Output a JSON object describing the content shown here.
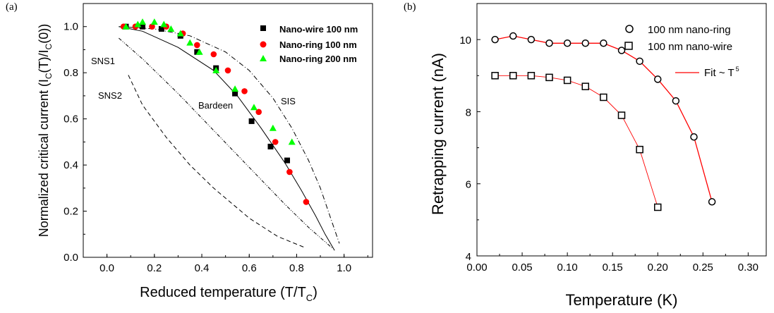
{
  "chart_data": [
    {
      "panel_label": "(a)",
      "type": "scatter",
      "xlabel_main": "Reduced temperature (T/T",
      "xlabel_sub": "C",
      "xlabel_end": ")",
      "ylabel_parts": [
        "Normalized critical current (I",
        "C",
        "(T)/I",
        "C",
        "(0))"
      ],
      "xlim": [
        -0.1,
        1.12
      ],
      "ylim": [
        0.0,
        1.1
      ],
      "xticks": [
        "0.0",
        "0.2",
        "0.4",
        "0.6",
        "0.8",
        "1.0"
      ],
      "yticks": [
        "0.0",
        "0.2",
        "0.4",
        "0.6",
        "0.8",
        "1.0"
      ],
      "series": [
        {
          "name": "Nano-wire 100 nm",
          "marker": "square",
          "color": "#000000",
          "x": [
            0.08,
            0.15,
            0.23,
            0.31,
            0.38,
            0.46,
            0.54,
            0.61,
            0.69,
            0.76
          ],
          "y": [
            1.0,
            1.0,
            0.99,
            0.96,
            0.89,
            0.82,
            0.71,
            0.59,
            0.48,
            0.42
          ]
        },
        {
          "name": "Nano-ring 100 nm",
          "marker": "circle",
          "color": "#ff0000",
          "x": [
            0.07,
            0.12,
            0.19,
            0.25,
            0.32,
            0.38,
            0.45,
            0.51,
            0.58,
            0.64,
            0.71,
            0.77,
            0.84
          ],
          "y": [
            1.0,
            1.0,
            1.0,
            1.0,
            0.97,
            0.92,
            0.88,
            0.81,
            0.72,
            0.63,
            0.5,
            0.37,
            0.24
          ]
        },
        {
          "name": "Nano-ring 200 nm",
          "marker": "triangle",
          "color": "#00ff00",
          "x": [
            0.08,
            0.13,
            0.15,
            0.2,
            0.24,
            0.27,
            0.31,
            0.35,
            0.39,
            0.46,
            0.54,
            0.62,
            0.7,
            0.78
          ],
          "y": [
            1.0,
            1.01,
            1.02,
            1.02,
            1.01,
            0.99,
            0.97,
            0.93,
            0.89,
            0.81,
            0.73,
            0.65,
            0.56,
            0.5
          ]
        }
      ],
      "curves": [
        {
          "name": "SIS",
          "style": "dashdot",
          "x": [
            0.05,
            0.2,
            0.35,
            0.5,
            0.6,
            0.7,
            0.78,
            0.85,
            0.9,
            0.94,
            0.98
          ],
          "y": [
            1.0,
            0.99,
            0.96,
            0.89,
            0.81,
            0.69,
            0.56,
            0.42,
            0.3,
            0.18,
            0.06
          ]
        },
        {
          "name": "Bardeen",
          "style": "solid",
          "x": [
            0.05,
            0.15,
            0.3,
            0.45,
            0.55,
            0.65,
            0.75,
            0.82,
            0.88,
            0.92,
            0.96
          ],
          "y": [
            1.0,
            0.98,
            0.91,
            0.81,
            0.7,
            0.56,
            0.41,
            0.29,
            0.18,
            0.1,
            0.03
          ]
        },
        {
          "name": "SNS1",
          "style": "dashdotdot",
          "x": [
            0.05,
            0.15,
            0.3,
            0.45,
            0.6,
            0.75,
            0.85,
            0.95
          ],
          "y": [
            0.95,
            0.86,
            0.71,
            0.55,
            0.39,
            0.23,
            0.13,
            0.04
          ]
        },
        {
          "name": "SNS2",
          "style": "dashed",
          "x": [
            0.09,
            0.15,
            0.25,
            0.35,
            0.45,
            0.6,
            0.72,
            0.84
          ],
          "y": [
            0.79,
            0.66,
            0.52,
            0.4,
            0.3,
            0.17,
            0.09,
            0.04
          ]
        }
      ],
      "annotations": [
        "SNS1",
        "SNS2",
        "Bardeen",
        "SIS"
      ],
      "legend_position": "top-right"
    },
    {
      "panel_label": "(b)",
      "type": "scatter",
      "xlabel": "Temperature (K)",
      "ylabel": "Retrapping current (nA)",
      "xlim": [
        0.0,
        0.32
      ],
      "ylim": [
        4,
        11
      ],
      "xticks": [
        "0.00",
        "0.05",
        "0.10",
        "0.15",
        "0.20",
        "0.25",
        "0.30"
      ],
      "yticks": [
        "4",
        "6",
        "8",
        "10"
      ],
      "series": [
        {
          "name": "100 nm nano-ring",
          "marker": "open-circle",
          "color": "#000000",
          "x": [
            0.02,
            0.04,
            0.06,
            0.08,
            0.1,
            0.12,
            0.14,
            0.16,
            0.18,
            0.2,
            0.22,
            0.24,
            0.26
          ],
          "y": [
            10.0,
            10.1,
            10.0,
            9.9,
            9.9,
            9.9,
            9.9,
            9.7,
            9.4,
            8.9,
            8.3,
            7.3,
            5.5
          ]
        },
        {
          "name": "100 nm nano-wire",
          "marker": "open-square",
          "color": "#000000",
          "x": [
            0.02,
            0.04,
            0.06,
            0.08,
            0.1,
            0.12,
            0.14,
            0.16,
            0.18,
            0.2
          ],
          "y": [
            9.0,
            9.0,
            9.0,
            8.95,
            8.87,
            8.7,
            8.4,
            7.9,
            6.95,
            5.35
          ]
        }
      ],
      "fit_legend_main": "Fit ~ T",
      "fit_legend_sup": "5",
      "fit_color": "#ff0000",
      "legend_position": "top-right"
    }
  ]
}
